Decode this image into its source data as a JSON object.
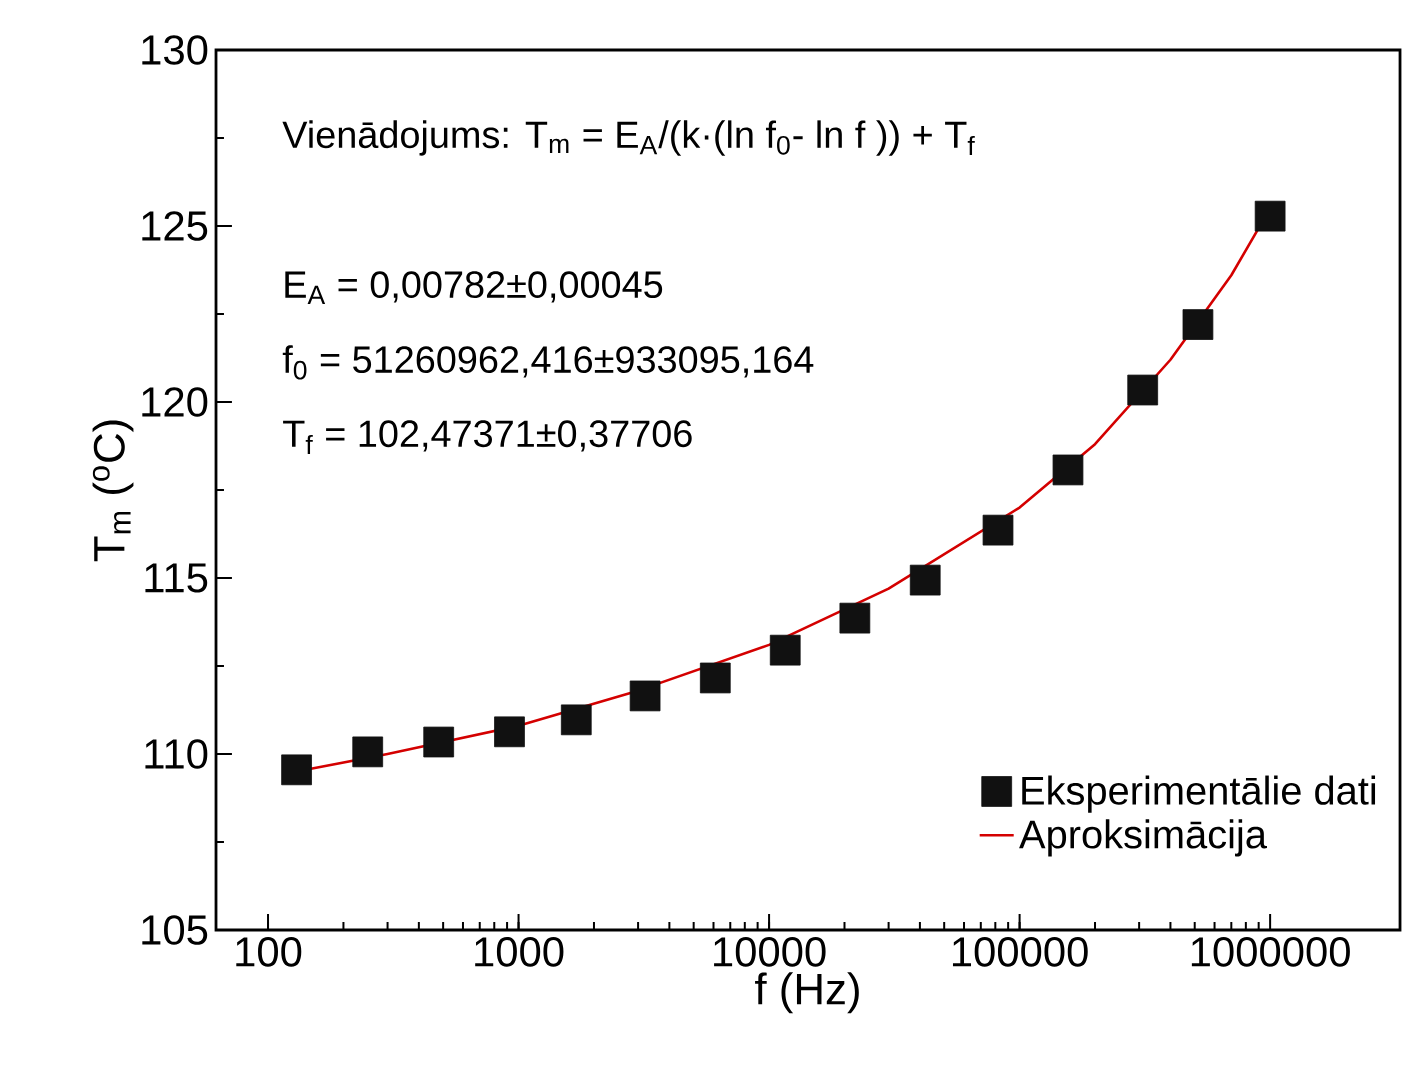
{
  "chart_data": {
    "type": "scatter",
    "xlabel": "f (Hz)",
    "ylabel": "T$_{m}$ ($^{o}$C)",
    "annotations": [
      "Vienādojums: T$_{m}$ = E$_{A}$/(k·(ln f$_{0}$- ln f )) + T$_{f}$",
      "E$_{A}$ = 0,00782±0,00045",
      "f$_{0}$ = 51260962,416±933095,164",
      "T$_{f}$ = 102,47371±0,37706"
    ],
    "log": "x",
    "xlim": [
      62,
      3300000
    ],
    "ylim": [
      105,
      130
    ],
    "xticks": [
      100,
      1000,
      10000,
      100000,
      1000000
    ],
    "yticks": [
      105,
      110,
      115,
      120,
      125,
      130
    ],
    "grid": false,
    "legend": "bottom right",
    "series": [
      {
        "name": "Eksperimentālie dati",
        "marker": "square",
        "color": "#111111",
        "x": [
          130,
          250,
          480,
          920,
          1700,
          3200,
          6100,
          11600,
          22000,
          42000,
          82000,
          156000,
          310000,
          515000,
          1000000
        ],
        "values": [
          109.55,
          110.06,
          110.34,
          110.63,
          110.97,
          111.65,
          112.16,
          112.95,
          113.86,
          114.94,
          116.36,
          118.07,
          120.34,
          122.2,
          125.28
        ]
      },
      {
        "name": "Aproksimācija",
        "type": "line",
        "line_style": "solid",
        "color": "#d40000",
        "x": [
          130,
          300,
          1000,
          3000,
          10000,
          30000,
          100000,
          200000,
          400000,
          700000,
          1000000
        ],
        "values": [
          109.5,
          110.0,
          110.8,
          111.8,
          113.1,
          114.7,
          117.0,
          118.8,
          121.2,
          123.6,
          125.5
        ]
      }
    ]
  }
}
